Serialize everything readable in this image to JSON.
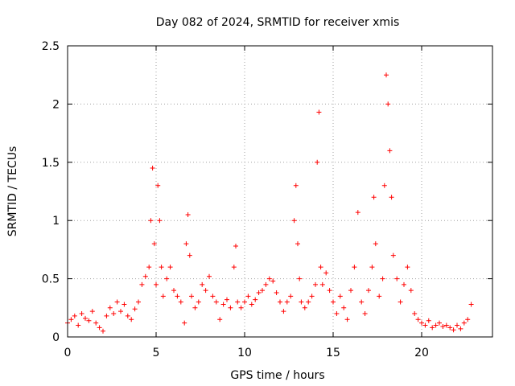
{
  "chart_data": {
    "type": "scatter",
    "title": "Day 082 of 2024, SRMTID for receiver xmis",
    "xlabel": "GPS time / hours",
    "ylabel": "SRMTID / TECUs",
    "xlim": [
      0,
      24
    ],
    "ylim": [
      0,
      2.5
    ],
    "xticks": [
      0,
      5,
      10,
      15,
      20
    ],
    "xtick_labels": [
      "0",
      "5",
      "10",
      "15",
      "20"
    ],
    "yticks": [
      0,
      0.5,
      1,
      1.5,
      2,
      2.5
    ],
    "ytick_labels": [
      "0",
      "0.5",
      "1",
      "1.5",
      "2",
      "2.5"
    ],
    "grid": true,
    "marker": "+",
    "series": [
      {
        "name": "SRMTID",
        "color": "#ff0000",
        "x": [
          0.0,
          0.2,
          0.4,
          0.6,
          0.8,
          1.0,
          1.2,
          1.4,
          1.6,
          1.8,
          2.0,
          2.2,
          2.4,
          2.6,
          2.8,
          3.0,
          3.2,
          3.4,
          3.6,
          3.8,
          4.0,
          4.2,
          4.4,
          4.6,
          4.7,
          4.8,
          4.9,
          5.0,
          5.1,
          5.2,
          5.3,
          5.4,
          5.6,
          5.8,
          6.0,
          6.2,
          6.4,
          6.6,
          6.7,
          6.8,
          6.9,
          7.0,
          7.2,
          7.4,
          7.6,
          7.8,
          8.0,
          8.2,
          8.4,
          8.6,
          8.8,
          9.0,
          9.2,
          9.4,
          9.5,
          9.6,
          9.8,
          10.0,
          10.2,
          10.4,
          10.6,
          10.8,
          11.0,
          11.2,
          11.4,
          11.6,
          11.8,
          12.0,
          12.2,
          12.4,
          12.6,
          12.8,
          12.9,
          13.0,
          13.1,
          13.2,
          13.4,
          13.6,
          13.8,
          14.0,
          14.1,
          14.2,
          14.3,
          14.4,
          14.6,
          14.8,
          15.0,
          15.2,
          15.4,
          15.6,
          15.8,
          16.0,
          16.2,
          16.4,
          16.6,
          16.8,
          17.0,
          17.2,
          17.3,
          17.4,
          17.6,
          17.8,
          17.9,
          18.0,
          18.1,
          18.2,
          18.3,
          18.4,
          18.6,
          18.8,
          19.0,
          19.2,
          19.4,
          19.6,
          19.8,
          20.0,
          20.2,
          20.4,
          20.6,
          20.8,
          21.0,
          21.2,
          21.4,
          21.6,
          21.8,
          22.0,
          22.2,
          22.4,
          22.6,
          22.8
        ],
        "y": [
          0.12,
          0.15,
          0.18,
          0.1,
          0.2,
          0.16,
          0.14,
          0.22,
          0.12,
          0.08,
          0.05,
          0.18,
          0.25,
          0.2,
          0.3,
          0.22,
          0.28,
          0.18,
          0.15,
          0.24,
          0.3,
          0.45,
          0.52,
          0.6,
          1.0,
          1.45,
          0.8,
          0.45,
          1.3,
          1.0,
          0.6,
          0.35,
          0.5,
          0.6,
          0.4,
          0.35,
          0.3,
          0.12,
          0.8,
          1.05,
          0.7,
          0.35,
          0.25,
          0.3,
          0.45,
          0.4,
          0.52,
          0.35,
          0.3,
          0.15,
          0.28,
          0.32,
          0.25,
          0.6,
          0.78,
          0.3,
          0.25,
          0.3,
          0.35,
          0.28,
          0.32,
          0.38,
          0.4,
          0.45,
          0.5,
          0.48,
          0.38,
          0.3,
          0.22,
          0.3,
          0.35,
          1.0,
          1.3,
          0.8,
          0.5,
          0.3,
          0.25,
          0.3,
          0.35,
          0.45,
          1.5,
          1.93,
          0.6,
          0.45,
          0.55,
          0.4,
          0.3,
          0.2,
          0.35,
          0.25,
          0.15,
          0.4,
          0.6,
          1.07,
          0.3,
          0.2,
          0.4,
          0.6,
          1.2,
          0.8,
          0.35,
          0.5,
          1.3,
          2.25,
          2.0,
          1.6,
          1.2,
          0.7,
          0.5,
          0.3,
          0.45,
          0.6,
          0.4,
          0.2,
          0.15,
          0.12,
          0.1,
          0.14,
          0.08,
          0.1,
          0.12,
          0.09,
          0.1,
          0.08,
          0.06,
          0.1,
          0.07,
          0.12,
          0.15,
          0.28
        ]
      }
    ]
  }
}
